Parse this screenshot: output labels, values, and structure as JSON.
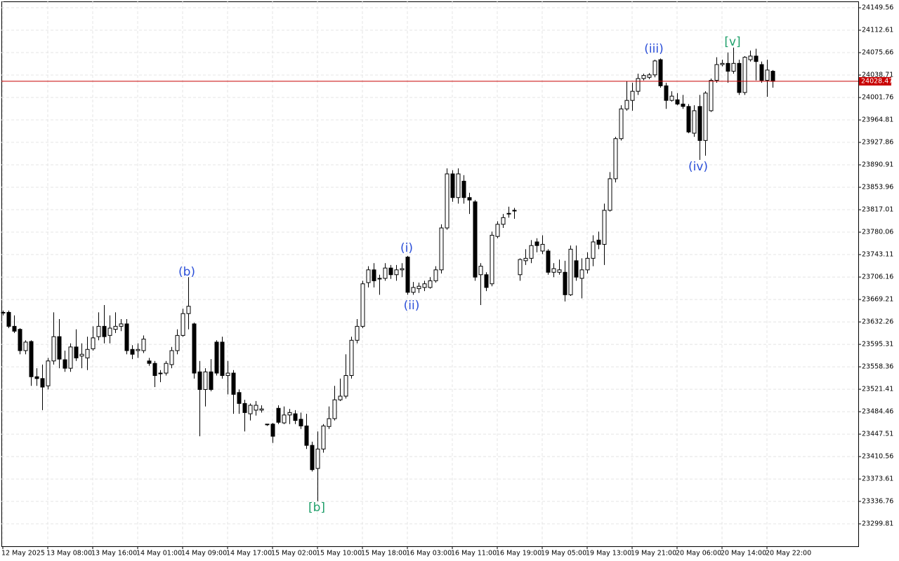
{
  "chart_data": {
    "type": "candlestick",
    "open": [
      23647,
      23648,
      23625,
      23620,
      23585,
      23600,
      23542,
      23539,
      23527,
      23568,
      23608,
      23570,
      23556,
      23591,
      23576,
      23573,
      23588,
      23608,
      23625,
      23610,
      23620,
      23625,
      23629,
      23587,
      23585,
      23585,
      23568,
      23564,
      23547,
      23548,
      23562,
      23585,
      23610,
      23646,
      23629,
      23550,
      23521,
      23550,
      23599,
      23599,
      23544,
      23548,
      23516,
      23498,
      23481,
      23487,
      23487,
      23464,
      23464,
      23490,
      23466,
      23479,
      23481,
      23472,
      23461,
      23429,
      23391,
      23423,
      23460,
      23473,
      23504,
      23510,
      23544,
      23602,
      23625,
      23697,
      23718,
      23704,
      23704,
      23721,
      23710,
      23718,
      23739,
      23681,
      23687,
      23689,
      23689,
      23700,
      23718,
      23787,
      23876,
      23837,
      23864,
      23837,
      23830,
      23710,
      23710,
      23695,
      23773,
      23793,
      23810,
      23815,
      23710,
      23733,
      23737,
      23764,
      23749,
      23749,
      23714,
      23714,
      23714,
      23677,
      23733,
      23704,
      23718,
      23737,
      23767,
      23760,
      23816,
      23868,
      23934,
      23983,
      23997,
      24012,
      24033,
      24035,
      24039,
      24064,
      24021,
      23997,
      23998,
      23991,
      23987,
      23943,
      23987,
      23931,
      23980,
      24030,
      24056,
      24058,
      24045,
      24058,
      24010,
      24064,
      24070,
      24056,
      24030,
      24045
    ],
    "high": [
      23651,
      23651,
      23643,
      23622,
      23602,
      23602,
      23556,
      23562,
      23573,
      23648,
      23637,
      23585,
      23597,
      23620,
      23597,
      23608,
      23625,
      23648,
      23660,
      23643,
      23648,
      23637,
      23637,
      23594,
      23597,
      23610,
      23573,
      23568,
      23553,
      23568,
      23591,
      23620,
      23654,
      23706,
      23631,
      23568,
      23556,
      23571,
      23602,
      23608,
      23568,
      23553,
      23521,
      23504,
      23498,
      23502,
      23495,
      23464,
      23466,
      23495,
      23493,
      23489,
      23487,
      23483,
      23481,
      23435,
      23452,
      23464,
      23493,
      23527,
      23539,
      23579,
      23608,
      23637,
      23700,
      23724,
      23729,
      23710,
      23729,
      23726,
      23726,
      23729,
      23741,
      23698,
      23697,
      23700,
      23706,
      23724,
      23793,
      23885,
      23882,
      23885,
      23874,
      23845,
      23833,
      23729,
      23714,
      23781,
      23798,
      23810,
      23822,
      23820,
      23737,
      23752,
      23767,
      23770,
      23775,
      23752,
      23729,
      23735,
      23733,
      23758,
      23758,
      23737,
      23747,
      23775,
      23781,
      23827,
      23879,
      23937,
      23989,
      24029,
      24026,
      24041,
      24041,
      24042,
      24064,
      24066,
      24026,
      24012,
      24009,
      24006,
      23991,
      23989,
      24006,
      24012,
      24033,
      24068,
      24064,
      24076,
      24084,
      24064,
      24070,
      24079,
      24082,
      24061,
      24064,
      24047
    ],
    "low": [
      23643,
      23622,
      23614,
      23579,
      23579,
      23527,
      23527,
      23487,
      23521,
      23562,
      23556,
      23550,
      23550,
      23568,
      23556,
      23553,
      23585,
      23602,
      23597,
      23597,
      23614,
      23617,
      23579,
      23571,
      23573,
      23581,
      23560,
      23525,
      23533,
      23544,
      23556,
      23579,
      23608,
      23620,
      23539,
      23444,
      23493,
      23518,
      23544,
      23539,
      23513,
      23481,
      23481,
      23452,
      23470,
      23478,
      23483,
      23461,
      23433,
      23464,
      23464,
      23464,
      23464,
      23456,
      23423,
      23386,
      23337,
      23417,
      23456,
      23470,
      23502,
      23506,
      23539,
      23597,
      23622,
      23689,
      23689,
      23677,
      23700,
      23703,
      23700,
      23706,
      23677,
      23677,
      23680,
      23683,
      23687,
      23697,
      23712,
      23784,
      23830,
      23827,
      23827,
      23810,
      23700,
      23660,
      23683,
      23691,
      23770,
      23787,
      23804,
      23802,
      23700,
      23726,
      23729,
      23747,
      23744,
      23710,
      23706,
      23710,
      23666,
      23675,
      23700,
      23671,
      23712,
      23724,
      23752,
      23726,
      23814,
      23862,
      23931,
      23980,
      23980,
      24006,
      24030,
      24032,
      24035,
      24018,
      23983,
      23995,
      23989,
      23983,
      23943,
      23937,
      23899,
      23906,
      23978,
      24026,
      24053,
      24026,
      24041,
      24006,
      24006,
      24061,
      24030,
      24026,
      24003,
      24018
    ],
    "close": [
      23648,
      23625,
      23617,
      23585,
      23599,
      23542,
      23539,
      23525,
      23568,
      23608,
      23571,
      23556,
      23591,
      23573,
      23579,
      23587,
      23606,
      23625,
      23608,
      23622,
      23625,
      23629,
      23585,
      23579,
      23587,
      23604,
      23564,
      23544,
      23548,
      23564,
      23585,
      23610,
      23646,
      23658,
      23548,
      23521,
      23550,
      23521,
      23548,
      23544,
      23548,
      23513,
      23498,
      23483,
      23495,
      23495,
      23489,
      23463,
      23444,
      23467,
      23479,
      23483,
      23470,
      23461,
      23429,
      23389,
      23423,
      23461,
      23473,
      23504,
      23510,
      23544,
      23602,
      23625,
      23695,
      23718,
      23700,
      23703,
      23721,
      23710,
      23718,
      23720,
      23681,
      23689,
      23691,
      23695,
      23700,
      23718,
      23787,
      23876,
      23837,
      23876,
      23837,
      23833,
      23706,
      23724,
      23689,
      23775,
      23793,
      23804,
      23811,
      23816,
      23735,
      23737,
      23758,
      23758,
      23760,
      23714,
      23720,
      23718,
      23677,
      23752,
      23706,
      23718,
      23737,
      23764,
      23760,
      23816,
      23868,
      23934,
      23983,
      23997,
      24012,
      24033,
      24038,
      24039,
      24062,
      24021,
      23997,
      24004,
      23991,
      23987,
      23945,
      23980,
      23931,
      24009,
      24030,
      24056,
      24058,
      24045,
      24058,
      24010,
      24068,
      24070,
      24061,
      24030,
      24047,
      24028.47
    ],
    "ylim": [
      23262.86,
      24160.0
    ],
    "yticks": [
      23299.81,
      23336.76,
      23373.61,
      23410.56,
      23447.51,
      23484.46,
      23521.41,
      23558.36,
      23595.31,
      23632.26,
      23669.21,
      23706.16,
      23743.11,
      23780.06,
      23817.01,
      23853.96,
      23890.91,
      23927.86,
      23964.81,
      24001.76,
      24038.71,
      24075.66,
      24112.61,
      24149.56
    ],
    "xticks": [
      {
        "value": 0,
        "label": "12 May 2025"
      },
      {
        "value": 8,
        "label": "13 May 08:00"
      },
      {
        "value": 16,
        "label": "13 May 16:00"
      },
      {
        "value": 24,
        "label": "14 May 01:00"
      },
      {
        "value": 32,
        "label": "14 May 09:00"
      },
      {
        "value": 40,
        "label": "14 May 17:00"
      },
      {
        "value": 48,
        "label": "15 May 02:00"
      },
      {
        "value": 56,
        "label": "15 May 10:00"
      },
      {
        "value": 64,
        "label": "15 May 18:00"
      },
      {
        "value": 72,
        "label": "16 May 03:00"
      },
      {
        "value": 80,
        "label": "16 May 11:00"
      },
      {
        "value": 88,
        "label": "16 May 19:00"
      },
      {
        "value": 96,
        "label": "19 May 05:00"
      },
      {
        "value": 104,
        "label": "19 May 13:00"
      },
      {
        "value": 112,
        "label": "19 May 21:00"
      },
      {
        "value": 120,
        "label": "20 May 06:00"
      },
      {
        "value": 128,
        "label": "20 May 14:00"
      },
      {
        "value": 136,
        "label": "20 May 22:00"
      }
    ],
    "grid": true,
    "up_color": "#ffffff",
    "down_color": "#000000",
    "current_price": 24028.47,
    "current_price_color": "#c80000",
    "annotations": [
      {
        "text": "(b)",
        "color": "#2b4fd8"
      },
      {
        "text": "(i)",
        "color": "#2b4fd8"
      },
      {
        "text": "(ii)",
        "color": "#2b4fd8"
      },
      {
        "text": "(iii)",
        "color": "#2b4fd8"
      },
      {
        "text": "(iv)",
        "color": "#2b4fd8"
      },
      {
        "text": "[v]",
        "color": "#1f9f6a"
      },
      {
        "text": "[b]",
        "color": "#1f9f6a"
      }
    ]
  }
}
